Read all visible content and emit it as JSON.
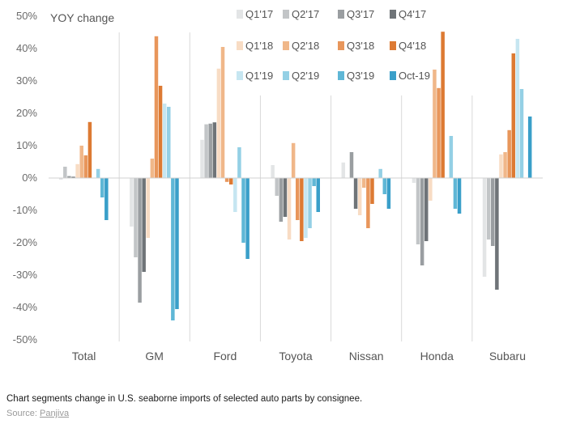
{
  "chart_data": {
    "type": "bar",
    "title": "YOY change",
    "ylim": [
      -50,
      50
    ],
    "yticks": [
      -50,
      -40,
      -30,
      -20,
      -10,
      0,
      10,
      20,
      30,
      40,
      50
    ],
    "ytick_labels": [
      "-50%",
      "-40%",
      "-30%",
      "-20%",
      "-10%",
      "0%",
      "10%",
      "20%",
      "30%",
      "40%",
      "50%"
    ],
    "categories": [
      "Total",
      "GM",
      "Ford",
      "Toyota",
      "Nissan",
      "Honda",
      "Subaru"
    ],
    "legend_placement": "top-right",
    "grid": false,
    "series": [
      {
        "name": "Q1'17",
        "color": "#e3e5e6",
        "values": [
          -0.5,
          -15,
          11.8,
          4,
          4.8,
          -1.5,
          -30.5
        ]
      },
      {
        "name": "Q2'17",
        "color": "#c2c5c7",
        "values": [
          3.5,
          -24.5,
          16.6,
          -5.5,
          0,
          -20.5,
          -19
        ]
      },
      {
        "name": "Q3'17",
        "color": "#9a9ea1",
        "values": [
          0.6,
          -38.5,
          16.8,
          -13.5,
          8,
          -27,
          -21
        ]
      },
      {
        "name": "Q4'17",
        "color": "#6f7478",
        "values": [
          0.4,
          -29,
          17.2,
          -12,
          -9.5,
          -19.5,
          -34.5
        ]
      },
      {
        "name": "Q1'18",
        "color": "#f8dcc4",
        "values": [
          4.3,
          -18.5,
          33.8,
          -19,
          -11.5,
          -7,
          7.3
        ]
      },
      {
        "name": "Q2'18",
        "color": "#f0b789",
        "values": [
          10,
          6,
          40.5,
          10.8,
          -3,
          33.5,
          8
        ]
      },
      {
        "name": "Q3'18",
        "color": "#e8965b",
        "values": [
          7,
          43.8,
          -1.2,
          -13,
          -15.5,
          27.8,
          14.8
        ]
      },
      {
        "name": "Q4'18",
        "color": "#dd7a33",
        "values": [
          17.3,
          28.5,
          -2,
          -19.5,
          -8,
          45.2,
          38.5
        ]
      },
      {
        "name": "Q1'19",
        "color": "#c6e6f1",
        "values": [
          0,
          23,
          -10.5,
          -18.5,
          0,
          0,
          43
        ]
      },
      {
        "name": "Q2'19",
        "color": "#94d0e5",
        "values": [
          2.8,
          22,
          9.5,
          -15.5,
          2.8,
          13,
          27.5
        ]
      },
      {
        "name": "Q3'19",
        "color": "#5fb7d6",
        "values": [
          -6,
          -44,
          -20,
          -2.5,
          -5,
          -9.5,
          0
        ]
      },
      {
        "name": "Oct-19",
        "color": "#3a9fc9",
        "values": [
          -13,
          -40.5,
          -25,
          -10.5,
          -9.5,
          -11,
          19
        ]
      }
    ]
  },
  "footer": {
    "caption": "Chart segments change in U.S. seaborne imports of selected auto parts by consignee.",
    "source_label": "Source:",
    "source_link": "Panjiva"
  }
}
